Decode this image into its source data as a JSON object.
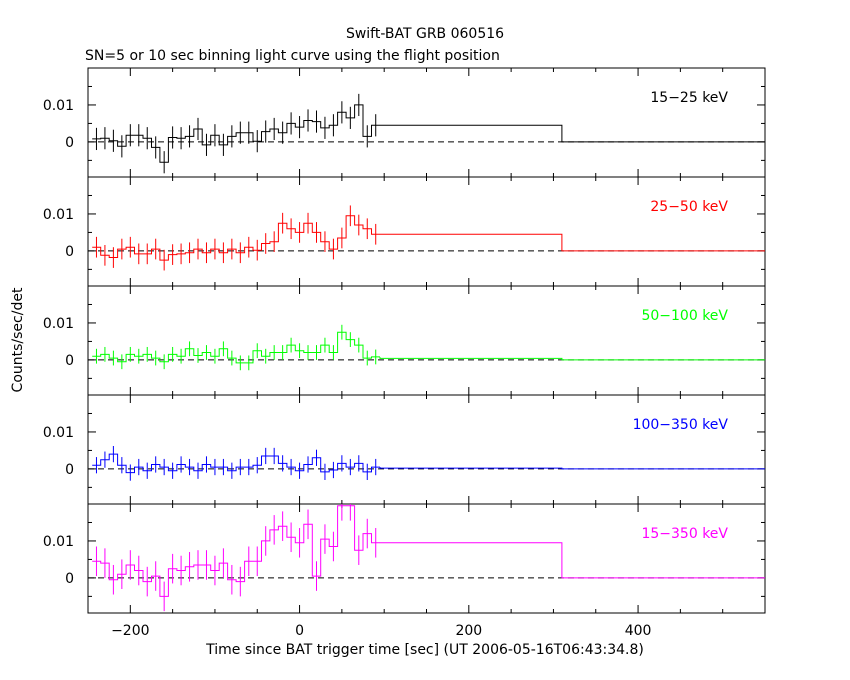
{
  "chart_data": {
    "type": "line",
    "title": "Swift-BAT GRB 060516",
    "subtitle": "SN=5 or 10 sec binning light curve using the flight position",
    "xlabel": "Time since BAT trigger time [sec] (UT 2006-05-16T06:43:34.8)",
    "ylabel": "Counts/sec/det",
    "xlim": [
      -250,
      550
    ],
    "ylim": [
      -0.0095,
      0.02
    ],
    "x_ticks": [
      -200,
      0,
      200,
      400
    ],
    "x_tick_labels": [
      "−200",
      "0",
      "200",
      "400"
    ],
    "y_ticks": [
      0,
      0.01
    ],
    "y_tick_labels": [
      "0",
      "0.01"
    ],
    "zero_line": "dashed",
    "bin_width_sec": 10,
    "fine_bins_x": [
      -240,
      -230,
      -220,
      -210,
      -200,
      -190,
      -180,
      -170,
      -160,
      -150,
      -140,
      -130,
      -120,
      -110,
      -100,
      -90,
      -80,
      -70,
      -60,
      -50,
      -40,
      -30,
      -20,
      -10,
      0,
      10,
      20,
      30,
      40,
      50,
      60,
      70,
      80,
      90
    ],
    "panels": [
      {
        "name": "15-25 keV",
        "label": "15−25 keV",
        "color": "#000000",
        "values": [
          0.0008,
          0.001,
          0.0003,
          -0.0012,
          0.0018,
          0.0018,
          0.001,
          -0.0015,
          -0.0055,
          0.0012,
          0.001,
          0.0015,
          0.0035,
          -0.0008,
          0.0018,
          -0.0008,
          0.0015,
          0.0025,
          0.0025,
          0.0002,
          0.0028,
          0.0035,
          0.0025,
          0.005,
          0.004,
          0.0058,
          0.0055,
          0.0038,
          0.0045,
          0.008,
          0.0065,
          0.01,
          0.0015,
          0.0045
        ],
        "errors": [
          0.003,
          0.003,
          0.003,
          0.003,
          0.003,
          0.003,
          0.003,
          0.003,
          0.003,
          0.003,
          0.003,
          0.003,
          0.003,
          0.003,
          0.003,
          0.003,
          0.003,
          0.003,
          0.003,
          0.003,
          0.003,
          0.003,
          0.003,
          0.003,
          0.003,
          0.003,
          0.003,
          0.003,
          0.003,
          0.003,
          0.003,
          0.003,
          0.003,
          0.003
        ],
        "wide_bin": {
          "x_start": 95,
          "x_end": 310,
          "value": 0.0045
        },
        "tail": {
          "x_start": 310,
          "x_end": 550,
          "value": 0
        }
      },
      {
        "name": "25-50 keV",
        "label": "25−50 keV",
        "color": "#ff0000",
        "values": [
          0.001,
          -0.0012,
          -0.0018,
          0.0005,
          0.001,
          -0.0008,
          -0.0008,
          0.0005,
          -0.0025,
          -0.001,
          -0.0008,
          -0.0005,
          0.0005,
          -0.0005,
          0.0005,
          -0.0005,
          0.0005,
          -0.0005,
          0.001,
          0.0002,
          0.002,
          0.0025,
          0.0075,
          0.006,
          0.005,
          0.0075,
          0.005,
          0.0025,
          0.0005,
          0.0035,
          0.0095,
          0.007,
          0.006,
          0.0045
        ],
        "errors": [
          0.0028,
          0.0028,
          0.0028,
          0.0028,
          0.0028,
          0.0028,
          0.0028,
          0.0028,
          0.0028,
          0.0028,
          0.0028,
          0.0028,
          0.0028,
          0.0028,
          0.0028,
          0.0028,
          0.0028,
          0.0028,
          0.0028,
          0.0028,
          0.0028,
          0.0028,
          0.0028,
          0.0028,
          0.0028,
          0.0028,
          0.0028,
          0.0028,
          0.0028,
          0.0028,
          0.0028,
          0.0028,
          0.0028,
          0.0028
        ],
        "wide_bin": {
          "x_start": 95,
          "x_end": 310,
          "value": 0.0045
        },
        "tail": {
          "x_start": 310,
          "x_end": 550,
          "value": 0
        }
      },
      {
        "name": "50-100 keV",
        "label": "50−100 keV",
        "color": "#00ff00",
        "values": [
          0.001,
          0.0015,
          0.0005,
          -0.0005,
          0.0015,
          0.001,
          0.0015,
          0.0005,
          -0.0005,
          0.0015,
          0.001,
          0.003,
          0.0012,
          0.002,
          0.001,
          0.003,
          0.0005,
          -0.0008,
          -0.0008,
          0.0025,
          0.001,
          0.002,
          0.002,
          0.004,
          0.0025,
          0.002,
          0.002,
          0.004,
          0.002,
          0.0075,
          0.0055,
          0.004,
          0.0005,
          0.0008
        ],
        "errors": [
          0.002,
          0.002,
          0.002,
          0.002,
          0.002,
          0.002,
          0.002,
          0.002,
          0.002,
          0.002,
          0.002,
          0.002,
          0.002,
          0.002,
          0.002,
          0.002,
          0.002,
          0.002,
          0.002,
          0.002,
          0.002,
          0.002,
          0.002,
          0.002,
          0.002,
          0.002,
          0.002,
          0.002,
          0.002,
          0.002,
          0.002,
          0.002,
          0.002,
          0.002
        ],
        "wide_bin": {
          "x_start": 95,
          "x_end": 310,
          "value": 0.0004
        },
        "tail": {
          "x_start": 310,
          "x_end": 550,
          "value": 0
        }
      },
      {
        "name": "100-350 keV",
        "label": "100−350 keV",
        "color": "#0000ff",
        "values": [
          0.001,
          0.0025,
          0.004,
          0.001,
          -0.001,
          0.0005,
          -0.0005,
          0.0012,
          0.0005,
          -0.0005,
          0.0012,
          0.0005,
          -0.0005,
          0.0012,
          0.0005,
          0.0005,
          -0.0005,
          0.0005,
          0.0005,
          0.001,
          0.0035,
          0.0035,
          0.0015,
          0.0005,
          -0.0005,
          0.0012,
          0.003,
          -0.0008,
          -0.0003,
          0.0015,
          0.0005,
          0.0015,
          -0.0008,
          0.0005
        ],
        "errors": [
          0.0022,
          0.0022,
          0.0022,
          0.0022,
          0.0022,
          0.0022,
          0.0022,
          0.0022,
          0.0022,
          0.0022,
          0.0022,
          0.0022,
          0.0022,
          0.0022,
          0.0022,
          0.0022,
          0.0022,
          0.0022,
          0.0022,
          0.0022,
          0.0022,
          0.0022,
          0.0022,
          0.0022,
          0.0022,
          0.0022,
          0.0022,
          0.0022,
          0.0022,
          0.0022,
          0.0022,
          0.0022,
          0.0022,
          0.0022
        ],
        "wide_bin": {
          "x_start": 95,
          "x_end": 310,
          "value": 0.0002
        },
        "tail": {
          "x_start": 310,
          "x_end": 550,
          "value": 0
        }
      },
      {
        "name": "15-350 keV",
        "label": "15−350 keV",
        "color": "#ff00ff",
        "values": [
          0.0045,
          0.004,
          -0.0005,
          0.001,
          0.0035,
          0.002,
          -0.001,
          0.0005,
          -0.005,
          0.0025,
          0.002,
          0.003,
          0.0035,
          0.0035,
          0.002,
          0.004,
          -0.0005,
          -0.001,
          0.0045,
          0.0045,
          0.01,
          0.013,
          0.014,
          0.011,
          0.0095,
          0.0145,
          0.0005,
          0.0105,
          0.0085,
          0.0195,
          0.0195,
          0.0075,
          0.012,
          0.0095
        ],
        "errors": [
          0.004,
          0.004,
          0.004,
          0.004,
          0.004,
          0.004,
          0.004,
          0.004,
          0.004,
          0.004,
          0.004,
          0.004,
          0.004,
          0.004,
          0.004,
          0.004,
          0.004,
          0.004,
          0.004,
          0.004,
          0.004,
          0.004,
          0.004,
          0.004,
          0.004,
          0.004,
          0.004,
          0.004,
          0.004,
          0.004,
          0.004,
          0.004,
          0.004,
          0.004
        ],
        "wide_bin": {
          "x_start": 95,
          "x_end": 310,
          "value": 0.0095
        },
        "tail": {
          "x_start": 310,
          "x_end": 550,
          "value": 0
        }
      }
    ]
  }
}
